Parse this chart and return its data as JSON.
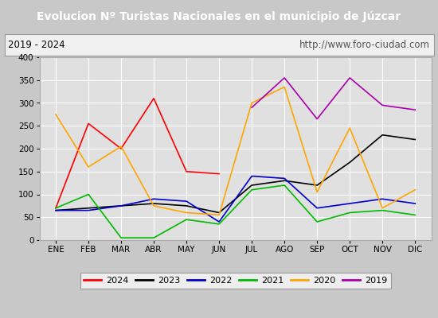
{
  "title": "Evolucion Nº Turistas Nacionales en el municipio de Júzcar",
  "subtitle_left": "2019 - 2024",
  "subtitle_right": "http://www.foro-ciudad.com",
  "months": [
    "ENE",
    "FEB",
    "MAR",
    "ABR",
    "MAY",
    "JUN",
    "JUL",
    "AGO",
    "SEP",
    "OCT",
    "NOV",
    "DIC"
  ],
  "ylim": [
    0,
    400
  ],
  "yticks": [
    0,
    50,
    100,
    150,
    200,
    250,
    300,
    350,
    400
  ],
  "series": {
    "2024": [
      70,
      255,
      200,
      310,
      150,
      145,
      null,
      null,
      null,
      null,
      null,
      null
    ],
    "2023": [
      65,
      70,
      75,
      80,
      75,
      60,
      120,
      130,
      120,
      170,
      230,
      220
    ],
    "2022": [
      65,
      65,
      75,
      90,
      85,
      40,
      140,
      135,
      70,
      80,
      90,
      80
    ],
    "2021": [
      70,
      100,
      5,
      5,
      45,
      35,
      110,
      120,
      40,
      60,
      65,
      55
    ],
    "2020": [
      275,
      160,
      205,
      75,
      60,
      55,
      300,
      335,
      105,
      245,
      70,
      110
    ],
    "2019": [
      null,
      null,
      null,
      null,
      null,
      null,
      290,
      355,
      265,
      355,
      295,
      285
    ]
  },
  "colors": {
    "2024": "#ff0000",
    "2023": "#000000",
    "2022": "#0000cc",
    "2021": "#00bb00",
    "2020": "#ffa500",
    "2019": "#aa00aa"
  },
  "title_bg": "#4472c4",
  "title_color": "#ffffff",
  "plot_bg": "#e0e0e0",
  "grid_color": "#ffffff",
  "subtitle_bg": "#f0f0f0",
  "fig_bg": "#c8c8c8",
  "legend_bg": "#f8f8f8"
}
